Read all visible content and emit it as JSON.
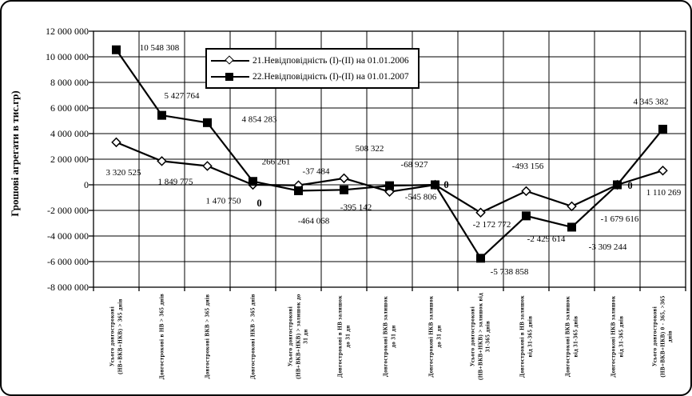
{
  "chart_data": {
    "type": "line",
    "title": "",
    "ylabel": "Грошові агрегати в тис.гр)",
    "ylim": [
      -8000000,
      12000000
    ],
    "ytick_step": 2000000,
    "ytick_labels": [
      "12 000 000",
      "10 000 000",
      "8 000 000",
      "6 000 000",
      "4 000 000",
      "2 000 000",
      "0",
      "-2 000 000",
      "-4 000 000",
      "-6 000 000",
      "-8 000 000"
    ],
    "grid": true,
    "legend_position": "top-center-inside",
    "categories": [
      "Усього довгострокові (НВ+ВКВ+НКВ) > 365 днів",
      "Довгострокові в НВ > 365 днів",
      "Довгострокові ВКВ > 365 днів",
      "Довгострокові НКВ > 365 днів",
      "Усього довгострокові (НВ+ВКВ+НКВ) > залишок до 31 дн",
      "Довгострокові в НВ залишок до 31 дн",
      "Довгострокові ВКВ залишок до 31 дн",
      "Довгострокові НКВ залишок до 31 дн",
      "Усього довгострокові (НВ+ВКВ+НКВ) > залишок від 31-365 днів",
      "Довгострокові в НВ залишок від 31-365 днів",
      "Довгострокові ВКВ залишок від 31-365 днів",
      "Довгострокові НКВ залишок від 31-365 днів",
      "Усього довгострокові (НВ+ВКВ+НКВ) 0 - 365, >365 днів"
    ],
    "series": [
      {
        "name": "21.Невідповідність (I)-(II) на 01.01.2006",
        "marker": "open-diamond",
        "color": "#000000",
        "values": [
          3320525,
          1849775,
          1470750,
          0,
          -37484,
          508322,
          -545806,
          0,
          -2172772,
          -493156,
          -1679616,
          0,
          1110269
        ],
        "labels": [
          "3 320 525",
          "1 849 775",
          "1 470 750",
          "0",
          "-37 484",
          "508 322",
          "-545 806",
          "",
          "-2 172 772",
          "-493 156",
          "-1 679 616",
          "",
          "1 110 269"
        ]
      },
      {
        "name": "22.Невідповідність (I)-(II) на 01.01.2007",
        "marker": "filled-square",
        "color": "#000000",
        "values": [
          10548308,
          5427764,
          4854283,
          266261,
          -464068,
          -395142,
          -68927,
          0,
          -5738858,
          -2429614,
          -3309244,
          0,
          4345382
        ],
        "labels": [
          "10 548 308",
          "5 427 764",
          "4 854 283",
          "266 261",
          "-464 068",
          "-395 142",
          "-68 927",
          "0",
          "-5 738 858",
          "-2 429 614",
          "-3 309 244",
          "0",
          "4 345 382"
        ]
      }
    ],
    "colors": {
      "line": "#000000",
      "background": "#ffffff"
    }
  }
}
